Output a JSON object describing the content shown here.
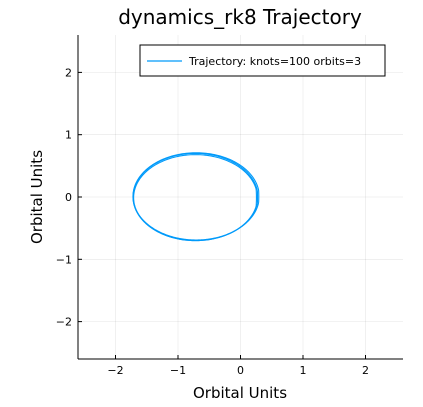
{
  "chart_data": {
    "type": "line",
    "title": "dynamics_rk8 Trajectory",
    "xlabel": "Orbital Units",
    "ylabel": "Orbital Units",
    "xlim": [
      -2.6,
      2.6
    ],
    "ylim": [
      -2.6,
      2.6
    ],
    "xticks": [
      -2,
      -1,
      0,
      1,
      2
    ],
    "yticks": [
      -2,
      -1,
      0,
      1,
      2
    ],
    "xtick_labels": [
      "−2",
      "−1",
      "0",
      "1",
      "2"
    ],
    "ytick_labels": [
      "−2",
      "−1",
      "0",
      "1",
      "2"
    ],
    "grid": true,
    "legend_position": "top-right",
    "series": [
      {
        "name": "Trajectory: knots=100 orbits=3",
        "color": "#009AFA",
        "orbits": [
          {
            "cx": -0.72,
            "cy": 0.0,
            "rx": 1.0,
            "ry": 0.7,
            "tip_x": 0.27
          },
          {
            "cx": -0.72,
            "cy": -0.01,
            "rx": 0.99,
            "ry": 0.69,
            "tip_x": 0.25
          },
          {
            "cx": -0.71,
            "cy": 0.01,
            "rx": 1.01,
            "ry": 0.7,
            "tip_x": 0.29
          }
        ]
      }
    ]
  }
}
